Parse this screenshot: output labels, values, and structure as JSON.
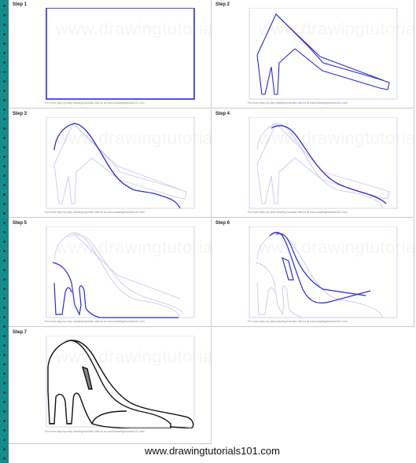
{
  "steps": [
    {
      "label": "Step 1",
      "footer": "For more step by step drawing tutorials visit us at www.drawingtutorials101.com"
    },
    {
      "label": "Step 2",
      "footer": "For more step by step drawing tutorials visit us at www.drawingtutorials101.com"
    },
    {
      "label": "Step 3",
      "footer": "For more step by step drawing tutorials visit us at www.drawingtutorials101.com"
    },
    {
      "label": "Step 4",
      "footer": "For more step by step drawing tutorials visit us at www.drawingtutorials101.com"
    },
    {
      "label": "Step 5",
      "footer": "For more step by step drawing tutorials visit us at www.drawingtutorials101.com"
    },
    {
      "label": "Step 6",
      "footer": "For more step by step drawing tutorials visit us at www.drawingtutorials101.com"
    },
    {
      "label": "Step 7",
      "footer": "For more step by step drawing tutorials visit us at www.drawingtutorials101.com"
    }
  ],
  "watermark": "www.drawingtutorials101.com",
  "site_url": "www.drawingtutorials101.com",
  "colors": {
    "guide": "#c8c8ee",
    "active": "#2a2ad6",
    "final": "#111111",
    "binding": "#148c8c"
  }
}
